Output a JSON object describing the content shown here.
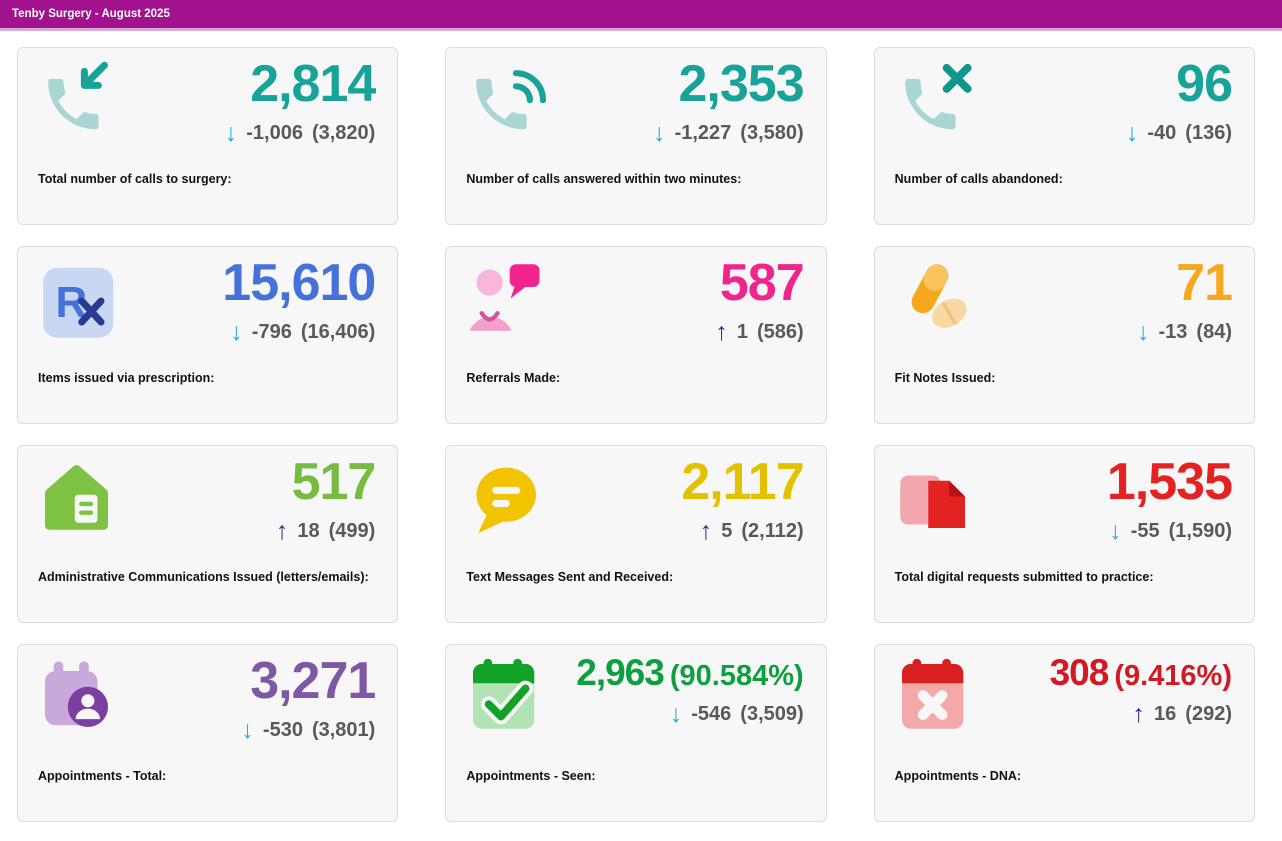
{
  "header": {
    "title": "Tenby Surgery - August 2025"
  },
  "colors": {
    "header_bg": "#A2128E",
    "header_strip": "#D8A9DB",
    "card_bg": "#F7F7F7",
    "card_border": "#DCDCDC",
    "change_text": "#595959",
    "label_text": "#111111"
  },
  "trend_glyphs": {
    "down": "↓",
    "up": "↑"
  },
  "trend_colors": {
    "down": "#29ABE2",
    "up": "#2E3192"
  },
  "cards": [
    {
      "id": "calls-total",
      "icon": "phone-incoming-icon",
      "color": "#17A398",
      "value": "2,814",
      "suffix": "",
      "trend": "down",
      "change": "-1,006",
      "previous": "(3,820)",
      "label": "Total number of calls to surgery:"
    },
    {
      "id": "calls-answered",
      "icon": "phone-answered-icon",
      "color": "#17A398",
      "value": "2,353",
      "suffix": "",
      "trend": "down",
      "change": "-1,227",
      "previous": "(3,580)",
      "label": "Number of calls answered within two minutes:"
    },
    {
      "id": "calls-abandoned",
      "icon": "phone-abandoned-icon",
      "color": "#17A398",
      "value": "96",
      "suffix": "",
      "trend": "down",
      "change": "-40",
      "previous": "(136)",
      "label": "Number of calls abandoned:"
    },
    {
      "id": "prescriptions",
      "icon": "prescription-icon",
      "color": "#4472D9",
      "value": "15,610",
      "suffix": "",
      "trend": "down",
      "change": "-796",
      "previous": "(16,406)",
      "label": "Items issued via prescription:"
    },
    {
      "id": "referrals",
      "icon": "referral-icon",
      "color": "#F0248C",
      "value": "587",
      "suffix": "",
      "trend": "up",
      "change": "1",
      "previous": "(586)",
      "label": "Referrals Made:"
    },
    {
      "id": "fit-notes",
      "icon": "pills-icon",
      "color": "#F5A81C",
      "value": "71",
      "suffix": "",
      "trend": "down",
      "change": "-13",
      "previous": "(84)",
      "label": "Fit Notes Issued:"
    },
    {
      "id": "admin-comms",
      "icon": "house-document-icon",
      "color": "#77BC40",
      "value": "517",
      "suffix": "",
      "trend": "up",
      "change": "18",
      "previous": "(499)",
      "label": "Administrative Communications Issued (letters/emails):"
    },
    {
      "id": "text-messages",
      "icon": "speech-bubble-icon",
      "color": "#E3C000",
      "value": "2,117",
      "suffix": "",
      "trend": "up",
      "change": "5",
      "previous": "(2,112)",
      "label": "Text Messages Sent and Received:"
    },
    {
      "id": "digital-requests",
      "icon": "document-request-icon",
      "color": "#E32222",
      "value": "1,535",
      "suffix": "",
      "trend": "down",
      "change": "-55",
      "previous": "(1,590)",
      "label": "Total digital requests submitted to practice:"
    },
    {
      "id": "appointments-total",
      "icon": "calendar-person-icon",
      "color": "#7D58A4",
      "value": "3,271",
      "suffix": "",
      "trend": "down",
      "change": "-530",
      "previous": "(3,801)",
      "label": "Appointments - Total:"
    },
    {
      "id": "appointments-seen",
      "icon": "calendar-check-icon",
      "color": "#0E9F40",
      "value": "2,963",
      "suffix": "(90.584%)",
      "trend": "down",
      "change": "-546",
      "previous": "(3,509)",
      "label": "Appointments - Seen:"
    },
    {
      "id": "appointments-dna",
      "icon": "calendar-cross-icon",
      "color": "#D11A23",
      "value": "308",
      "suffix": "(9.416%)",
      "trend": "up",
      "change": "16",
      "previous": "(292)",
      "label": "Appointments - DNA:"
    }
  ]
}
